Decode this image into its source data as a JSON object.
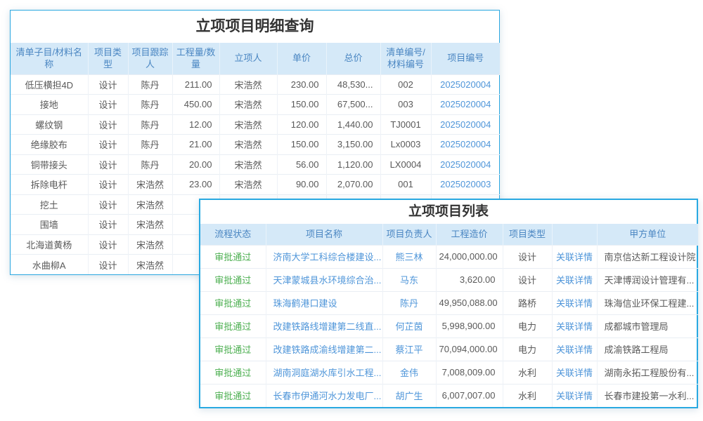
{
  "colors": {
    "panel_border_blue": "#2aa7e0",
    "header_bg": "#d5e9f8",
    "header_text_blue": "#4a86c2",
    "link_blue": "#4e95d9",
    "status_green": "#4caf50",
    "body_text": "#595959"
  },
  "detail_panel": {
    "title": "立项项目明细查询",
    "columns": [
      "清单子目/材料名称",
      "项目类型",
      "项目跟踪人",
      "工程量/数量",
      "立项人",
      "单价",
      "总价",
      "清单编号/材料编号",
      "项目编号"
    ],
    "rows": [
      [
        "低压横担4D",
        "设计",
        "陈丹",
        "211.00",
        "宋浩然",
        "230.00",
        "48,530...",
        "002",
        "2025020004"
      ],
      [
        "接地",
        "设计",
        "陈丹",
        "450.00",
        "宋浩然",
        "150.00",
        "67,500...",
        "003",
        "2025020004"
      ],
      [
        "螺纹钢",
        "设计",
        "陈丹",
        "12.00",
        "宋浩然",
        "120.00",
        "1,440.00",
        "TJ0001",
        "2025020004"
      ],
      [
        "绝缘胶布",
        "设计",
        "陈丹",
        "21.00",
        "宋浩然",
        "150.00",
        "3,150.00",
        "Lx0003",
        "2025020004"
      ],
      [
        "铜带接头",
        "设计",
        "陈丹",
        "20.00",
        "宋浩然",
        "56.00",
        "1,120.00",
        "LX0004",
        "2025020004"
      ],
      [
        "拆除电杆",
        "设计",
        "宋浩然",
        "23.00",
        "宋浩然",
        "90.00",
        "2,070.00",
        "001",
        "2025020003"
      ],
      [
        "挖土",
        "设计",
        "宋浩然",
        "",
        "",
        "",
        "",
        "",
        ""
      ],
      [
        "围墙",
        "设计",
        "宋浩然",
        "",
        "",
        "",
        "",
        "",
        ""
      ],
      [
        "北海道黄杨",
        "设计",
        "宋浩然",
        "",
        "",
        "",
        "",
        "",
        ""
      ],
      [
        "水曲柳A",
        "设计",
        "宋浩然",
        "",
        "",
        "",
        "",
        "",
        ""
      ]
    ]
  },
  "list_panel": {
    "title": "立项项目列表",
    "columns": [
      "流程状态",
      "项目名称",
      "项目负责人",
      "工程造价",
      "项目类型",
      "",
      "甲方单位"
    ],
    "rows": [
      [
        "审批通过",
        "济南大学工科综合楼建设...",
        "熊三林",
        "24,000,000.00",
        "设计",
        "关联详情",
        "南京信达新工程设计院"
      ],
      [
        "审批通过",
        "天津蒙城县水环境综合治...",
        "马东",
        "3,620.00",
        "设计",
        "关联详情",
        "天津博润设计管理有..."
      ],
      [
        "审批通过",
        "珠海鹤港口建设",
        "陈丹",
        "49,950,088.00",
        "路桥",
        "关联详情",
        "珠海信业环保工程建..."
      ],
      [
        "审批通过",
        "改建铁路线增建第二线直...",
        "何芷茵",
        "5,998,900.00",
        "电力",
        "关联详情",
        "成都城市管理局"
      ],
      [
        "审批通过",
        "改建铁路成渝线增建第二...",
        "蔡江平",
        "70,094,000.00",
        "电力",
        "关联详情",
        "成渝铁路工程局"
      ],
      [
        "审批通过",
        "湖南洞庭湖水库引水工程...",
        "金伟",
        "7,008,009.00",
        "水利",
        "关联详情",
        "湖南永拓工程股份有..."
      ],
      [
        "审批通过",
        "长春市伊通河水力发电厂...",
        "胡广生",
        "6,007,007.00",
        "水利",
        "关联详情",
        "长春市建投第一水利..."
      ]
    ]
  }
}
